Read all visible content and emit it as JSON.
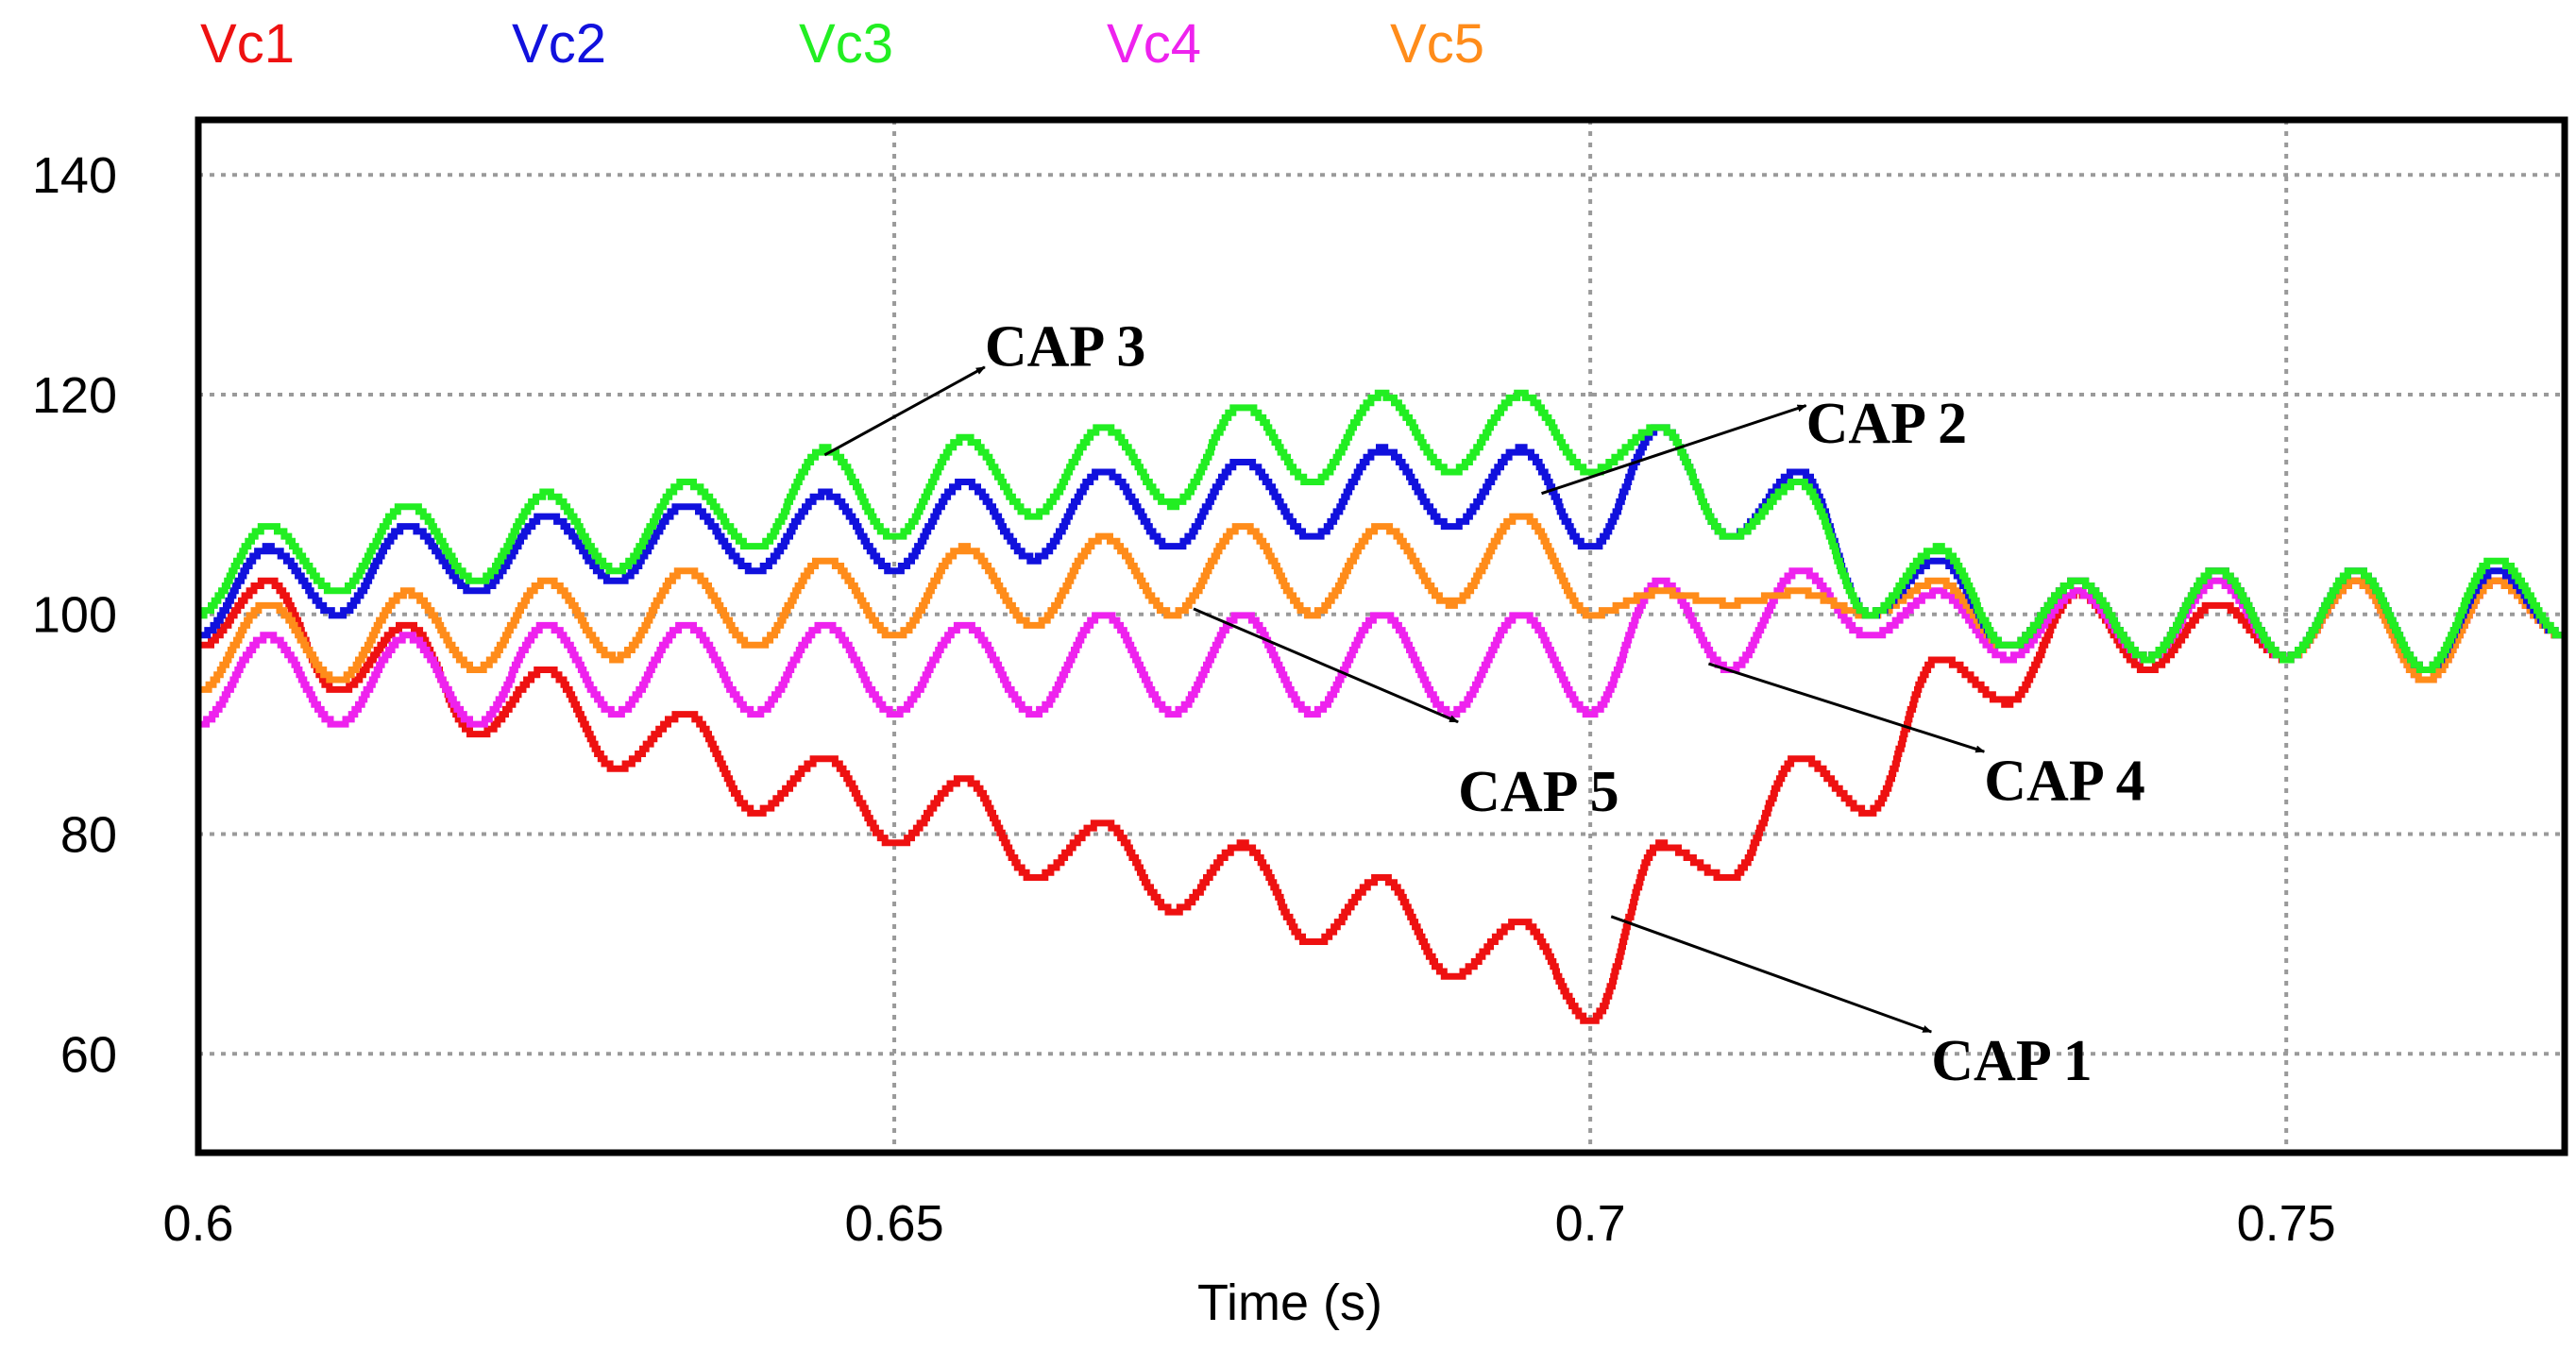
{
  "chart_data": {
    "type": "line",
    "title": "",
    "xlabel": "Time (s)",
    "ylabel": "",
    "xlim": [
      0.6,
      0.77
    ],
    "ylim": [
      51,
      145
    ],
    "grid": true,
    "legend_position": "top",
    "x_ticks": [
      {
        "value": 0.6,
        "label": "0.6"
      },
      {
        "value": 0.65,
        "label": "0.65"
      },
      {
        "value": 0.7,
        "label": "0.7"
      },
      {
        "value": 0.75,
        "label": "0.75"
      }
    ],
    "y_ticks": [
      {
        "value": 60,
        "label": "60"
      },
      {
        "value": 80,
        "label": "80"
      },
      {
        "value": 100,
        "label": "100"
      },
      {
        "value": 120,
        "label": "120"
      },
      {
        "value": 140,
        "label": "140"
      }
    ],
    "series": [
      {
        "name": "Vc1",
        "color": "#ee1111",
        "x": [
          0.6,
          0.605,
          0.61,
          0.615,
          0.62,
          0.625,
          0.63,
          0.635,
          0.64,
          0.645,
          0.65,
          0.655,
          0.66,
          0.665,
          0.67,
          0.675,
          0.68,
          0.685,
          0.69,
          0.695,
          0.7,
          0.705,
          0.71,
          0.715,
          0.72,
          0.725,
          0.73,
          0.735,
          0.74,
          0.745,
          0.75,
          0.755,
          0.76,
          0.765,
          0.77
        ],
        "values": [
          97,
          103,
          93,
          99,
          89,
          95,
          86,
          91,
          82,
          87,
          79,
          85,
          76,
          81,
          73,
          79,
          70,
          76,
          67,
          72,
          63,
          79,
          76,
          87,
          82,
          96,
          92,
          102,
          95,
          101,
          96,
          103,
          95,
          103,
          98
        ]
      },
      {
        "name": "Vc2",
        "color": "#1111dd",
        "x": [
          0.6,
          0.605,
          0.61,
          0.615,
          0.62,
          0.625,
          0.63,
          0.635,
          0.64,
          0.645,
          0.65,
          0.655,
          0.66,
          0.665,
          0.67,
          0.675,
          0.68,
          0.685,
          0.69,
          0.695,
          0.7,
          0.705,
          0.71,
          0.715,
          0.72,
          0.725,
          0.73,
          0.735,
          0.74,
          0.745,
          0.75,
          0.755,
          0.76,
          0.765,
          0.77
        ],
        "values": [
          98,
          106,
          100,
          108,
          102,
          109,
          103,
          110,
          104,
          111,
          104,
          112,
          105,
          113,
          106,
          114,
          107,
          115,
          108,
          115,
          106,
          117,
          107,
          113,
          100,
          105,
          97,
          103,
          96,
          104,
          96,
          104,
          95,
          104,
          98
        ]
      },
      {
        "name": "Vc3",
        "color": "#22ee22",
        "x": [
          0.6,
          0.605,
          0.61,
          0.615,
          0.62,
          0.625,
          0.63,
          0.635,
          0.64,
          0.645,
          0.65,
          0.655,
          0.66,
          0.665,
          0.67,
          0.675,
          0.68,
          0.685,
          0.69,
          0.695,
          0.7,
          0.705,
          0.71,
          0.715,
          0.72,
          0.725,
          0.73,
          0.735,
          0.74,
          0.745,
          0.75,
          0.755,
          0.76,
          0.765,
          0.77
        ],
        "values": [
          100,
          108,
          102,
          110,
          103,
          111,
          104,
          112,
          106,
          115,
          107,
          116,
          109,
          117,
          110,
          119,
          112,
          120,
          113,
          120,
          113,
          117,
          107,
          112,
          100,
          106,
          97,
          103,
          96,
          104,
          96,
          104,
          95,
          105,
          98
        ]
      },
      {
        "name": "Vc4",
        "color": "#ee22ee",
        "x": [
          0.6,
          0.605,
          0.61,
          0.615,
          0.62,
          0.625,
          0.63,
          0.635,
          0.64,
          0.645,
          0.65,
          0.655,
          0.66,
          0.665,
          0.67,
          0.675,
          0.68,
          0.685,
          0.69,
          0.695,
          0.7,
          0.705,
          0.71,
          0.715,
          0.72,
          0.725,
          0.73,
          0.735,
          0.74,
          0.745,
          0.75,
          0.755,
          0.76,
          0.765,
          0.77
        ],
        "values": [
          90,
          98,
          90,
          98,
          90,
          99,
          91,
          99,
          91,
          99,
          91,
          99,
          91,
          100,
          91,
          100,
          91,
          100,
          91,
          100,
          91,
          103,
          95,
          104,
          98,
          102,
          96,
          102,
          96,
          103,
          96,
          103,
          94,
          103,
          98
        ]
      },
      {
        "name": "Vc5",
        "color": "#ff8c1a",
        "x": [
          0.6,
          0.605,
          0.61,
          0.615,
          0.62,
          0.625,
          0.63,
          0.635,
          0.64,
          0.645,
          0.65,
          0.655,
          0.66,
          0.665,
          0.67,
          0.675,
          0.68,
          0.685,
          0.69,
          0.695,
          0.7,
          0.705,
          0.71,
          0.715,
          0.72,
          0.725,
          0.73,
          0.735,
          0.74,
          0.745,
          0.75,
          0.755,
          0.76,
          0.765,
          0.77
        ],
        "values": [
          93,
          101,
          94,
          102,
          95,
          103,
          96,
          104,
          97,
          105,
          98,
          106,
          99,
          107,
          100,
          108,
          100,
          108,
          101,
          109,
          100,
          102,
          101,
          102,
          100,
          103,
          97,
          103,
          96,
          104,
          96,
          103,
          94,
          103,
          98
        ]
      }
    ],
    "annotations": [
      {
        "text": "CAP 3",
        "arrow_tail": [
          0.645,
          114.5
        ],
        "arrow_head": [
          0.6565,
          122.5
        ],
        "text_at": [
          0.6565,
          124.5
        ]
      },
      {
        "text": "CAP 2",
        "arrow_tail": [
          0.6965,
          111
        ],
        "arrow_head": [
          0.7155,
          119
        ],
        "text_at": [
          0.7155,
          117.5
        ]
      },
      {
        "text": "CAP 5",
        "arrow_tail": [
          0.6715,
          100.5
        ],
        "arrow_head": [
          0.6905,
          90.2
        ],
        "text_at": [
          0.6905,
          84
        ]
      },
      {
        "text": "CAP 4",
        "arrow_tail": [
          0.7085,
          95.5
        ],
        "arrow_head": [
          0.7283,
          87.5
        ],
        "text_at": [
          0.7283,
          85
        ]
      },
      {
        "text": "CAP 1",
        "arrow_tail": [
          0.7015,
          72.5
        ],
        "arrow_head": [
          0.7245,
          62
        ],
        "text_at": [
          0.7245,
          59.5
        ]
      }
    ]
  }
}
